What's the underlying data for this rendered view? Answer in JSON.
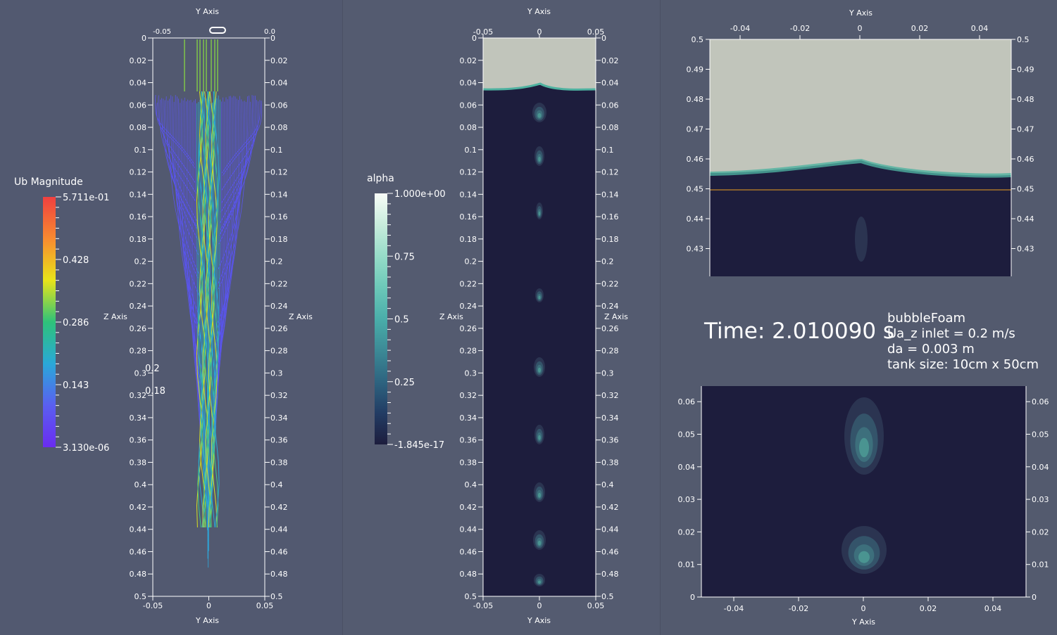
{
  "colors": {
    "background": "#535a6e",
    "liquid": "#1d1d3d",
    "gas": "#c1c5bb",
    "interface": "#4fb2a0",
    "interface_line": "#f0a020"
  },
  "views": {
    "streamlines": {
      "axis_title_x": "Y Axis",
      "axis_title_z": "Z Axis",
      "x_ticks": [
        "-0.05",
        "0",
        "0.05"
      ],
      "top_x_ticks": [
        "-0.05",
        "0.0"
      ],
      "z_ticks": [
        "0",
        "0.02",
        "0.04",
        "0.06",
        "0.08",
        "0.1",
        "0.12",
        "0.14",
        "0.16",
        "0.18",
        "0.2",
        "0.22",
        "0.24",
        "0.26",
        "0.28",
        "0.3",
        "0.32",
        "0.34",
        "0.36",
        "0.38",
        "0.4",
        "0.42",
        "0.44",
        "0.46",
        "0.48",
        "0.5"
      ],
      "stray_labels": [
        "0.2",
        "0.18"
      ],
      "colorbar": {
        "title": "Ub Magnitude",
        "labels": [
          "5.711e-01",
          "0.428",
          "0.286",
          "0.143",
          "3.130e-06"
        ],
        "colors": [
          "#f04040",
          "#f88a30",
          "#e8e41a",
          "#2ec27a",
          "#2aa8d8",
          "#5a5ff0",
          "#6a2cf0"
        ]
      }
    },
    "alpha": {
      "axis_title_x": "Y Axis",
      "axis_title_z": "Z Axis",
      "x_ticks": [
        "-0.05",
        "0",
        "0.05"
      ],
      "z_ticks": [
        "0",
        "0.02",
        "0.04",
        "0.06",
        "0.08",
        "0.1",
        "0.12",
        "0.14",
        "0.16",
        "0.18",
        "0.2",
        "0.22",
        "0.24",
        "0.26",
        "0.28",
        "0.3",
        "0.32",
        "0.34",
        "0.36",
        "0.38",
        "0.4",
        "0.42",
        "0.44",
        "0.46",
        "0.48",
        "0.5"
      ],
      "colorbar": {
        "title": "alpha",
        "labels": [
          "1.000e+00",
          "0.75",
          "0.5",
          "0.25",
          "-1.845e-17"
        ]
      }
    },
    "zoom_top": {
      "axis_title_x": "Y Axis",
      "x_ticks": [
        "-0.04",
        "-0.02",
        "0",
        "0.02",
        "0.04"
      ],
      "z_ticks": [
        "0.43",
        "0.44",
        "0.45",
        "0.46",
        "0.47",
        "0.48",
        "0.49",
        "0.5"
      ]
    },
    "info": {
      "time": "Time: 2.010090 s",
      "lines": [
        "bubbleFoam",
        "Ua_z inlet = 0.2 m/s",
        "da = 0.003 m",
        "tank size:  10cm x 50cm"
      ]
    },
    "zoom_bottom": {
      "axis_title_x": "Y Axis",
      "x_ticks": [
        "-0.04",
        "-0.02",
        "0",
        "0.02",
        "0.04"
      ],
      "z_ticks": [
        "0",
        "0.01",
        "0.02",
        "0.03",
        "0.04",
        "0.05",
        "0.06"
      ]
    }
  }
}
